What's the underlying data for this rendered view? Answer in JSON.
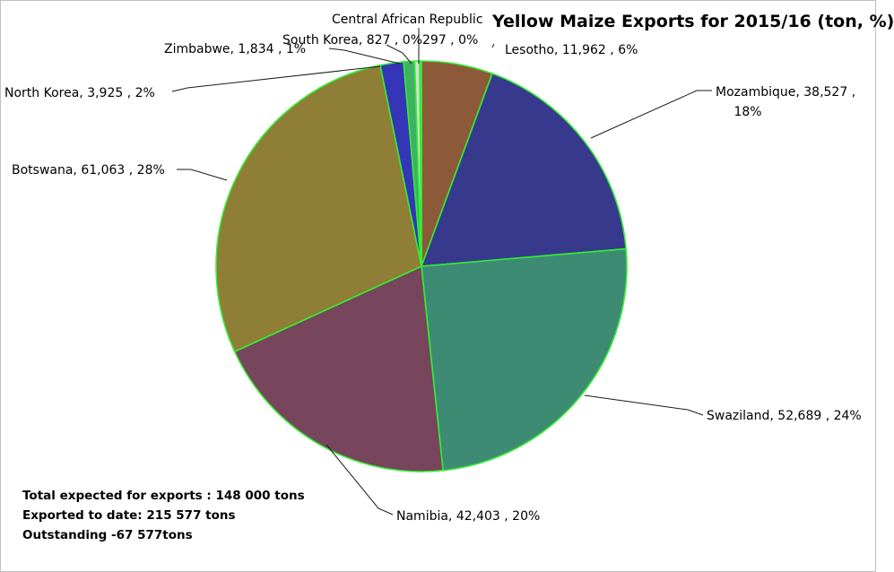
{
  "chart_data": {
    "type": "pie",
    "title": "Yellow Maize Exports for 2015/16 (ton, %)",
    "slices": [
      {
        "name": "Lesotho",
        "value": 11962,
        "value_label": "11,962",
        "percent_label": "6%",
        "color": "#8c5a38"
      },
      {
        "name": "Mozambique",
        "value": 38527,
        "value_label": "38,527",
        "percent_label": "18%",
        "color": "#373a8c"
      },
      {
        "name": "Swaziland",
        "value": 52689,
        "value_label": "52,689",
        "percent_label": "24%",
        "color": "#3e8b74"
      },
      {
        "name": "Namibia",
        "value": 42403,
        "value_label": "42,403",
        "percent_label": "20%",
        "color": "#77455c"
      },
      {
        "name": "Botswana",
        "value": 61063,
        "value_label": "61,063",
        "percent_label": "28%",
        "color": "#8f7e35"
      },
      {
        "name": "North Korea",
        "value": 3925,
        "value_label": "3,925",
        "percent_label": "2%",
        "color": "#3535b8"
      },
      {
        "name": "Zimbabwe",
        "value": 1834,
        "value_label": "1,834",
        "percent_label": "1%",
        "color": "#3fb064"
      },
      {
        "name": "South Korea",
        "value": 827,
        "value_label": "827",
        "percent_label": "0%",
        "color": "#d9d9d9"
      },
      {
        "name": "Central African Republic",
        "value": 297,
        "value_label": "297",
        "percent_label": "0%",
        "color": "#a6a6a6"
      }
    ],
    "slice_border_color": "#33ee33"
  },
  "notes": [
    "Total expected for exports : 148 000 tons",
    "Exported to date: 215 577 tons",
    "Outstanding  -67 577tons"
  ]
}
